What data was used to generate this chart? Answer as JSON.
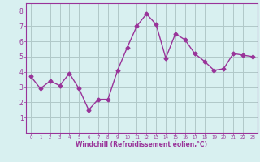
{
  "x": [
    0,
    1,
    2,
    3,
    4,
    5,
    6,
    7,
    8,
    9,
    10,
    11,
    12,
    13,
    14,
    15,
    16,
    17,
    18,
    19,
    20,
    21,
    22,
    23
  ],
  "y": [
    3.7,
    2.9,
    3.4,
    3.1,
    3.9,
    2.9,
    1.5,
    2.2,
    2.2,
    4.1,
    5.6,
    7.0,
    7.8,
    7.1,
    4.9,
    6.5,
    6.1,
    5.2,
    4.7,
    4.1,
    4.2,
    5.2,
    5.1,
    5.0
  ],
  "line_color": "#993399",
  "marker": "D",
  "marker_size": 2.5,
  "bg_color": "#d8f0f0",
  "grid_color": "#b0c8c8",
  "xlabel": "Windchill (Refroidissement éolien,°C)",
  "xlabel_color": "#993399",
  "tick_color": "#993399",
  "ylim": [
    0,
    8.5
  ],
  "xlim": [
    -0.5,
    23.5
  ],
  "yticks": [
    1,
    2,
    3,
    4,
    5,
    6,
    7,
    8
  ],
  "xticks": [
    0,
    1,
    2,
    3,
    4,
    5,
    6,
    7,
    8,
    9,
    10,
    11,
    12,
    13,
    14,
    15,
    16,
    17,
    18,
    19,
    20,
    21,
    22,
    23
  ]
}
